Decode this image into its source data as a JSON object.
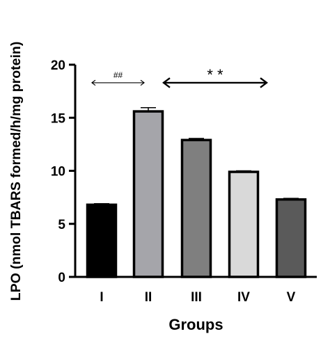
{
  "chart_data": {
    "type": "bar",
    "categories": [
      "I",
      "II",
      "III",
      "IV",
      "V"
    ],
    "values": [
      6.8,
      15.6,
      12.9,
      9.9,
      7.3
    ],
    "errors": [
      0.1,
      0.35,
      0.15,
      0.1,
      0.1
    ],
    "bar_colors": [
      "#000000",
      "#a5a5aa",
      "#7f7f7f",
      "#d9d9d9",
      "#5a5a5a"
    ],
    "xlabel": "Groups",
    "ylabel": "LPO (nmol TBARS formed/h/mg protein)",
    "ylim": [
      0,
      20
    ],
    "yticks": [
      0,
      5,
      10,
      15,
      20
    ],
    "grid": false,
    "annotations": [
      {
        "label": "##",
        "from_category": "I",
        "to_category": "II",
        "y": 18.3
      },
      {
        "label": "* *",
        "from_category": "II",
        "to_category": "IV",
        "y": 18.3
      }
    ]
  }
}
